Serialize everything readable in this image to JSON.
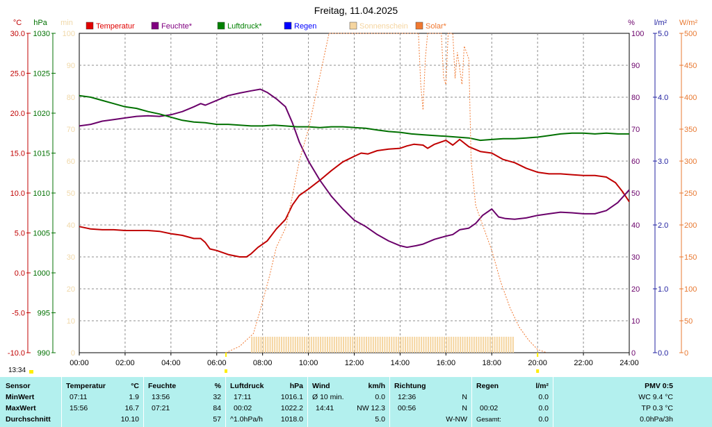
{
  "chart_data": {
    "type": "line",
    "title": "Freitag, 11.04.2025",
    "x_ticks": [
      "00:00",
      "02:00",
      "04:00",
      "06:00",
      "08:00",
      "10:00",
      "12:00",
      "14:00",
      "16:00",
      "18:00",
      "20:00",
      "22:00",
      "24:00"
    ],
    "xlim": [
      0,
      24
    ],
    "grid": true,
    "legend_position": "top",
    "axes": {
      "temp": {
        "unit": "°C",
        "ticks": [
          "30.0",
          "25.0",
          "20.0",
          "15.0",
          "10.0",
          "5.0",
          "0.0",
          "-5.0",
          "-10.0"
        ],
        "range": [
          -10,
          30
        ],
        "color": "#c00000"
      },
      "pressure": {
        "unit": "hPa",
        "ticks": [
          "1030",
          "1025",
          "1020",
          "1015",
          "1010",
          "1005",
          "1000",
          "995",
          "990"
        ],
        "range": [
          990,
          1030
        ],
        "color": "#007000"
      },
      "sunshine": {
        "unit": "min",
        "ticks": [
          "100",
          "90",
          "80",
          "70",
          "60",
          "50",
          "40",
          "30",
          "20",
          "10",
          "0"
        ],
        "range": [
          0,
          100
        ],
        "color": "#f0d8a8"
      },
      "humidity": {
        "unit": "%",
        "ticks": [
          "100",
          "90",
          "80",
          "70",
          "60",
          "50",
          "40",
          "30",
          "20",
          "10",
          "0"
        ],
        "range": [
          0,
          100
        ],
        "color": "#6a006a"
      },
      "rain": {
        "unit": "l/m²",
        "ticks": [
          "5.0",
          "4.0",
          "3.0",
          "2.0",
          "1.0",
          "0.0"
        ],
        "range": [
          0,
          5
        ],
        "color": "#2020a0"
      },
      "solar": {
        "unit": "W/m²",
        "ticks": [
          "500",
          "450",
          "400",
          "350",
          "300",
          "250",
          "200",
          "150",
          "100",
          "50",
          "0"
        ],
        "range": [
          0,
          500
        ],
        "color": "#e87830"
      }
    },
    "legend": [
      {
        "label": "Temperatur",
        "color": "#e00000"
      },
      {
        "label": "Feuchte*",
        "color": "#800080"
      },
      {
        "label": "Luftdruck*",
        "color": "#008000"
      },
      {
        "label": "Regen",
        "color": "#0000ff"
      },
      {
        "label": "Sonnenschein",
        "color": "#f5d5a0"
      },
      {
        "label": "Solar*",
        "color": "#f07830"
      }
    ],
    "series": [
      {
        "name": "Temperatur",
        "axis": "temp",
        "color": "#c00000",
        "points": [
          [
            0,
            5.8
          ],
          [
            0.5,
            5.5
          ],
          [
            1,
            5.4
          ],
          [
            1.5,
            5.4
          ],
          [
            2,
            5.3
          ],
          [
            2.5,
            5.3
          ],
          [
            3,
            5.3
          ],
          [
            3.5,
            5.2
          ],
          [
            4,
            4.9
          ],
          [
            4.5,
            4.7
          ],
          [
            5,
            4.3
          ],
          [
            5.3,
            4.3
          ],
          [
            5.5,
            3.8
          ],
          [
            5.7,
            3.0
          ],
          [
            6,
            2.8
          ],
          [
            6.5,
            2.3
          ],
          [
            7,
            2.0
          ],
          [
            7.3,
            2.0
          ],
          [
            7.5,
            2.4
          ],
          [
            7.8,
            3.2
          ],
          [
            8.2,
            4.0
          ],
          [
            8.6,
            5.5
          ],
          [
            9,
            6.7
          ],
          [
            9.3,
            8.5
          ],
          [
            9.6,
            9.7
          ],
          [
            10,
            10.5
          ],
          [
            10.5,
            11.6
          ],
          [
            11,
            12.8
          ],
          [
            11.5,
            13.9
          ],
          [
            12,
            14.6
          ],
          [
            12.3,
            15.0
          ],
          [
            12.6,
            14.9
          ],
          [
            13,
            15.3
          ],
          [
            13.5,
            15.5
          ],
          [
            14,
            15.6
          ],
          [
            14.3,
            15.9
          ],
          [
            14.6,
            16.1
          ],
          [
            15,
            16.0
          ],
          [
            15.2,
            15.6
          ],
          [
            15.5,
            16.1
          ],
          [
            16,
            16.6
          ],
          [
            16.3,
            16.0
          ],
          [
            16.6,
            16.7
          ],
          [
            17,
            15.8
          ],
          [
            17.5,
            15.2
          ],
          [
            18,
            15.0
          ],
          [
            18.5,
            14.2
          ],
          [
            19,
            13.8
          ],
          [
            19.5,
            13.1
          ],
          [
            20,
            12.6
          ],
          [
            20.5,
            12.4
          ],
          [
            21,
            12.4
          ],
          [
            21.5,
            12.3
          ],
          [
            22,
            12.2
          ],
          [
            22.5,
            12.2
          ],
          [
            23,
            12.0
          ],
          [
            23.4,
            11.3
          ],
          [
            23.7,
            10.2
          ],
          [
            24,
            8.9
          ]
        ]
      },
      {
        "name": "Feuchte*",
        "axis": "humidity",
        "color": "#6a006a",
        "points": [
          [
            0,
            71
          ],
          [
            0.5,
            71.5
          ],
          [
            1,
            72.5
          ],
          [
            1.5,
            73
          ],
          [
            2,
            73.5
          ],
          [
            2.5,
            74
          ],
          [
            3,
            74.2
          ],
          [
            3.5,
            74
          ],
          [
            4,
            74.5
          ],
          [
            4.5,
            75.5
          ],
          [
            5,
            77
          ],
          [
            5.3,
            78
          ],
          [
            5.5,
            77.5
          ],
          [
            6,
            79
          ],
          [
            6.5,
            80.5
          ],
          [
            7,
            81.3
          ],
          [
            7.5,
            82
          ],
          [
            7.9,
            82.5
          ],
          [
            8.2,
            81.5
          ],
          [
            8.6,
            79.5
          ],
          [
            9,
            77
          ],
          [
            9.3,
            72
          ],
          [
            9.6,
            66
          ],
          [
            10,
            60
          ],
          [
            10.5,
            54
          ],
          [
            11,
            49
          ],
          [
            11.5,
            45
          ],
          [
            12,
            41.5
          ],
          [
            12.5,
            39.5
          ],
          [
            13,
            37
          ],
          [
            13.5,
            35
          ],
          [
            14,
            33.5
          ],
          [
            14.3,
            33
          ],
          [
            14.7,
            33.5
          ],
          [
            15,
            34
          ],
          [
            15.5,
            35.5
          ],
          [
            16,
            36.5
          ],
          [
            16.3,
            37
          ],
          [
            16.6,
            38.5
          ],
          [
            17,
            39
          ],
          [
            17.3,
            40.5
          ],
          [
            17.6,
            43
          ],
          [
            18,
            45
          ],
          [
            18.3,
            42.5
          ],
          [
            18.6,
            42
          ],
          [
            19,
            41.8
          ],
          [
            19.5,
            42.2
          ],
          [
            20,
            43
          ],
          [
            20.5,
            43.5
          ],
          [
            21,
            44
          ],
          [
            21.5,
            43.8
          ],
          [
            22,
            43.5
          ],
          [
            22.5,
            43.5
          ],
          [
            23,
            44.5
          ],
          [
            23.5,
            47
          ],
          [
            24,
            51
          ]
        ]
      },
      {
        "name": "Luftdruck*",
        "axis": "pressure",
        "color": "#007000",
        "points": [
          [
            0,
            1022.2
          ],
          [
            0.5,
            1022
          ],
          [
            1,
            1021.6
          ],
          [
            1.5,
            1021.2
          ],
          [
            2,
            1020.8
          ],
          [
            2.5,
            1020.6
          ],
          [
            3,
            1020.2
          ],
          [
            3.5,
            1019.9
          ],
          [
            4,
            1019.5
          ],
          [
            4.5,
            1019.1
          ],
          [
            5,
            1018.9
          ],
          [
            5.5,
            1018.8
          ],
          [
            6,
            1018.6
          ],
          [
            6.5,
            1018.6
          ],
          [
            7,
            1018.5
          ],
          [
            7.5,
            1018.4
          ],
          [
            8,
            1018.4
          ],
          [
            8.5,
            1018.5
          ],
          [
            9,
            1018.4
          ],
          [
            9.5,
            1018.3
          ],
          [
            10,
            1018.3
          ],
          [
            10.5,
            1018.2
          ],
          [
            11,
            1018.3
          ],
          [
            11.5,
            1018.3
          ],
          [
            12,
            1018.2
          ],
          [
            12.5,
            1018.1
          ],
          [
            13,
            1017.9
          ],
          [
            13.5,
            1017.7
          ],
          [
            14,
            1017.6
          ],
          [
            14.5,
            1017.4
          ],
          [
            15,
            1017.3
          ],
          [
            15.5,
            1017.2
          ],
          [
            16,
            1017.1
          ],
          [
            16.5,
            1017.0
          ],
          [
            17,
            1016.9
          ],
          [
            17.5,
            1016.6
          ],
          [
            18,
            1016.7
          ],
          [
            18.5,
            1016.8
          ],
          [
            19,
            1016.8
          ],
          [
            19.5,
            1016.9
          ],
          [
            20,
            1017.0
          ],
          [
            20.5,
            1017.2
          ],
          [
            21,
            1017.4
          ],
          [
            21.5,
            1017.5
          ],
          [
            22,
            1017.5
          ],
          [
            22.5,
            1017.4
          ],
          [
            23,
            1017.5
          ],
          [
            23.5,
            1017.4
          ],
          [
            24,
            1017.4
          ]
        ]
      },
      {
        "name": "Solar*",
        "axis": "solar",
        "color": "#f07830",
        "points": [
          [
            6.4,
            0
          ],
          [
            7,
            10
          ],
          [
            7.6,
            30
          ],
          [
            8,
            80
          ],
          [
            8.3,
            120
          ],
          [
            8.6,
            165
          ],
          [
            9,
            195
          ],
          [
            9.3,
            245
          ],
          [
            9.6,
            300
          ],
          [
            10,
            350
          ],
          [
            10.3,
            400
          ],
          [
            10.6,
            450
          ],
          [
            10.9,
            500
          ],
          [
            14.8,
            500
          ],
          [
            14.9,
            420
          ],
          [
            15,
            380
          ],
          [
            15.1,
            460
          ],
          [
            15.2,
            500
          ],
          [
            15.8,
            500
          ],
          [
            15.9,
            430
          ],
          [
            16,
            420
          ],
          [
            16.1,
            500
          ],
          [
            16.3,
            500
          ],
          [
            16.4,
            430
          ],
          [
            16.5,
            470
          ],
          [
            16.7,
            420
          ],
          [
            16.8,
            480
          ],
          [
            17,
            460
          ],
          [
            17.1,
            300
          ],
          [
            17.3,
            230
          ],
          [
            17.6,
            200
          ],
          [
            18,
            160
          ],
          [
            18.4,
            110
          ],
          [
            18.8,
            70
          ],
          [
            19.2,
            40
          ],
          [
            19.6,
            20
          ],
          [
            20,
            5
          ],
          [
            20.4,
            0
          ]
        ]
      },
      {
        "name": "Sonnenschein",
        "axis": "sunshine",
        "color": "#f5d5a0",
        "start": 7.5,
        "end": 18.9,
        "value": 5
      }
    ],
    "markers": [
      {
        "x": 6.4,
        "label": "",
        "color": "#ffee00"
      },
      {
        "x": 20.0,
        "label": "",
        "color": "#ffee00"
      }
    ]
  },
  "current_time": "13:34",
  "stats": {
    "sensor": {
      "header": "Sensor",
      "rows": [
        "MinWert",
        "MaxWert",
        "Durchschnitt"
      ]
    },
    "temperatur": {
      "header": "Temperatur",
      "unit": "°C",
      "time_min": "07:11",
      "val_min": "1.9",
      "time_max": "15:56",
      "val_max": "16.7",
      "avg": "10.10"
    },
    "feuchte": {
      "header": "Feuchte",
      "unit": "%",
      "time_min": "13:56",
      "val_min": "32",
      "time_max": "07:21",
      "val_max": "84",
      "avg": "57"
    },
    "luftdruck": {
      "header": "Luftdruck",
      "unit": "hPa",
      "time_min": "17:11",
      "val_min": "1016.1",
      "time_max": "00:02",
      "val_max": "1022.2",
      "trend": "^1.0hPa/h",
      "avg": "1018.0"
    },
    "wind": {
      "header": "Wind",
      "unit": "km/h",
      "min_label": "Ø 10 min.",
      "val_min": "0.0",
      "time_max": "14:41",
      "val_max": "NW 12.3",
      "avg": "5.0"
    },
    "richtung": {
      "header": "Richtung",
      "time_min": "12:36",
      "val_min": "N",
      "time_max": "00:56",
      "val_max": "N",
      "avg": "W-NW"
    },
    "regen": {
      "header": "Regen",
      "unit": "l/m²",
      "time_max": "00:02",
      "val_min": "0.0",
      "val_max": "0.0",
      "total_label": "Gesamt:",
      "total": "0.0"
    },
    "pmv": {
      "header": "PMV 0:5",
      "wc": "WC 9.4 °C",
      "tp": "TP 0.3 °C",
      "trend": "0.0hPa/3h"
    }
  }
}
